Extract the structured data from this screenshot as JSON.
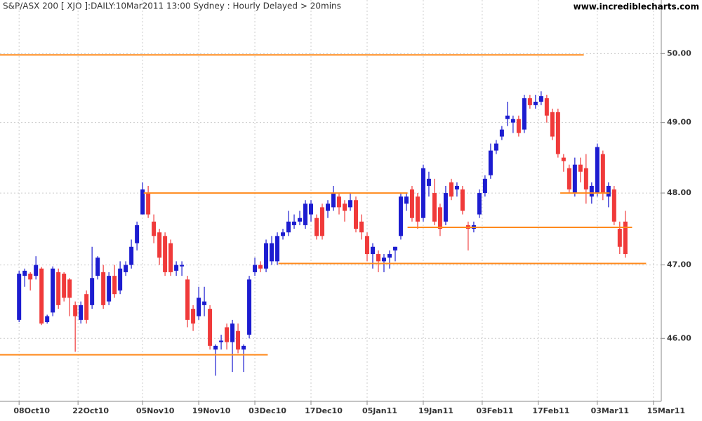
{
  "chart_data": {
    "type": "candlestick",
    "title": "S&P/ASX 200 [ XJO ]:DAILY:10Mar2011 13:00 Sydney : Hourly Delayed > 20mins",
    "source": "www.incrediblecharts.com",
    "log": true,
    "grid": true,
    "up_color": "#1c1cd0",
    "down_color": "#f03a3a",
    "level_color": "#ff8a1c",
    "ylim": [
      45.16,
      50.79
    ],
    "yticks": [
      {
        "value": 46,
        "label": "46.00"
      },
      {
        "value": 47,
        "label": "47.00"
      },
      {
        "value": 48,
        "label": "48.00"
      },
      {
        "value": 49,
        "label": "49.00"
      },
      {
        "value": 50,
        "label": "50.00"
      }
    ],
    "xlim": [
      -3.4,
      114.4
    ],
    "xticks": [
      {
        "value": 0,
        "label": "08Oct10"
      },
      {
        "value": 10.5,
        "label": "22Oct10"
      },
      {
        "value": 22,
        "label": "05Nov10"
      },
      {
        "value": 32,
        "label": "19Nov10"
      },
      {
        "value": 42,
        "label": "03Dec10"
      },
      {
        "value": 52,
        "label": "17Dec10"
      },
      {
        "value": 62,
        "label": "05Jan11"
      },
      {
        "value": 72,
        "label": "19Jan11"
      },
      {
        "value": 82.5,
        "label": "03Feb11"
      },
      {
        "value": 92.5,
        "label": "17Feb11"
      },
      {
        "value": 103,
        "label": "03Mar11"
      },
      {
        "value": 113,
        "label": "15Mar11"
      }
    ],
    "open": [
      46.25,
      46.85,
      46.88,
      46.85,
      46.95,
      46.22,
      46.35,
      46.9,
      46.88,
      46.8,
      46.45,
      46.25,
      46.6,
      46.45,
      46.85,
      46.9,
      46.5,
      46.85,
      46.65,
      46.9,
      47.0,
      47.3,
      47.7,
      48.0,
      47.6,
      47.45,
      47.4,
      47.3,
      46.92,
      46.98,
      46.8,
      46.4,
      46.3,
      46.45,
      46.4,
      45.85,
      45.95,
      46.15,
      45.95,
      46.1,
      45.85,
      46.05,
      46.9,
      47.0,
      46.95,
      47.05,
      47.05,
      47.4,
      47.45,
      47.55,
      47.6,
      47.55,
      47.7,
      47.65,
      47.8,
      47.75,
      47.8,
      47.95,
      47.85,
      47.8,
      47.9,
      47.6,
      47.4,
      47.15,
      47.15,
      47.05,
      47.1,
      47.2,
      47.4,
      47.85,
      48.05,
      47.95,
      47.65,
      48.1,
      48.0,
      47.8,
      47.6,
      48.15,
      48.05,
      48.05,
      47.55,
      47.5,
      47.7,
      48.0,
      48.25,
      48.6,
      48.8,
      49.05,
      49.0,
      49.05,
      48.9,
      49.35,
      49.25,
      49.3,
      49.35,
      49.15,
      49.15,
      48.5,
      48.35,
      48.0,
      48.4,
      48.35,
      47.95,
      48.0,
      48.55,
      47.95,
      48.05,
      47.5,
      47.6
    ],
    "high": [
      46.92,
      46.95,
      46.9,
      47.12,
      46.97,
      46.32,
      46.98,
      46.95,
      46.9,
      46.82,
      46.5,
      46.5,
      46.65,
      47.25,
      47.12,
      47.0,
      46.9,
      47.0,
      47.05,
      47.05,
      47.35,
      47.6,
      48.15,
      48.1,
      47.7,
      47.5,
      47.45,
      47.35,
      47.05,
      47.05,
      46.85,
      46.45,
      46.7,
      46.7,
      46.45,
      45.92,
      46.05,
      46.2,
      46.25,
      46.2,
      45.92,
      46.85,
      47.1,
      47.05,
      47.35,
      47.4,
      47.45,
      47.5,
      47.75,
      47.7,
      47.75,
      47.9,
      47.9,
      47.7,
      47.85,
      47.9,
      48.1,
      48.0,
      47.9,
      48.0,
      47.95,
      47.7,
      47.45,
      47.3,
      47.2,
      47.15,
      47.2,
      47.25,
      48.0,
      48.0,
      48.1,
      48.0,
      48.4,
      48.3,
      48.2,
      47.85,
      48.1,
      48.2,
      48.15,
      48.1,
      47.6,
      47.6,
      48.05,
      48.25,
      48.7,
      48.75,
      48.95,
      49.3,
      49.1,
      49.1,
      49.4,
      49.4,
      49.4,
      49.45,
      49.4,
      49.2,
      49.2,
      48.55,
      48.4,
      48.5,
      48.5,
      48.55,
      48.15,
      48.7,
      48.6,
      48.15,
      48.1,
      47.6,
      47.75
    ],
    "low": [
      46.22,
      46.7,
      46.65,
      46.8,
      46.18,
      46.2,
      46.3,
      46.4,
      46.5,
      46.3,
      45.82,
      46.2,
      46.2,
      46.4,
      46.8,
      46.4,
      46.45,
      46.55,
      46.6,
      46.85,
      46.95,
      47.2,
      47.7,
      47.65,
      47.3,
      47.0,
      46.85,
      46.85,
      46.85,
      46.85,
      46.15,
      46.1,
      46.25,
      46.3,
      45.85,
      45.5,
      45.85,
      45.85,
      45.55,
      45.8,
      45.55,
      46.0,
      46.85,
      46.9,
      46.9,
      47.0,
      47.0,
      47.35,
      47.4,
      47.5,
      47.55,
      47.5,
      47.6,
      47.35,
      47.35,
      47.65,
      47.75,
      47.7,
      47.6,
      47.75,
      47.45,
      47.35,
      47.05,
      46.95,
      46.9,
      46.9,
      46.95,
      47.05,
      47.35,
      47.75,
      47.6,
      47.5,
      47.6,
      47.95,
      47.55,
      47.4,
      47.55,
      47.9,
      47.95,
      47.7,
      47.2,
      47.45,
      47.65,
      47.95,
      48.2,
      48.55,
      48.75,
      48.95,
      48.85,
      48.8,
      48.85,
      49.2,
      49.2,
      49.25,
      49.0,
      48.75,
      48.5,
      48.3,
      48.0,
      47.95,
      48.15,
      47.85,
      47.85,
      47.95,
      47.9,
      47.8,
      47.55,
      47.15,
      47.1
    ],
    "close": [
      46.88,
      46.92,
      46.8,
      47.0,
      46.2,
      46.3,
      46.95,
      46.45,
      46.55,
      46.55,
      46.3,
      46.45,
      46.25,
      46.82,
      47.1,
      46.45,
      46.85,
      46.6,
      46.95,
      47.0,
      47.25,
      47.55,
      48.05,
      47.7,
      47.4,
      47.1,
      46.9,
      46.9,
      47.0,
      47.0,
      46.25,
      46.2,
      46.55,
      46.5,
      45.9,
      45.9,
      45.97,
      45.95,
      46.2,
      45.85,
      45.9,
      46.8,
      47.0,
      46.95,
      47.3,
      47.3,
      47.4,
      47.45,
      47.6,
      47.6,
      47.65,
      47.85,
      47.85,
      47.4,
      47.4,
      47.85,
      48.0,
      47.8,
      47.75,
      47.9,
      47.5,
      47.45,
      47.15,
      47.25,
      47.05,
      47.1,
      47.15,
      47.25,
      47.95,
      47.95,
      47.65,
      47.6,
      48.35,
      48.2,
      47.6,
      47.5,
      48.0,
      47.95,
      48.1,
      47.75,
      47.5,
      47.55,
      48.0,
      48.2,
      48.6,
      48.7,
      48.9,
      49.1,
      49.05,
      48.85,
      49.35,
      49.25,
      49.3,
      49.38,
      49.1,
      48.8,
      48.55,
      48.45,
      48.05,
      48.4,
      48.3,
      48.05,
      48.1,
      48.65,
      48.0,
      48.1,
      47.6,
      47.25,
      47.15
    ],
    "levels": [
      {
        "value": 49.98,
        "from": -3.4,
        "to": 100.6
      },
      {
        "value": 48.0,
        "from": 22.2,
        "to": 69.2
      },
      {
        "value": 45.78,
        "from": -3.4,
        "to": 44.3
      },
      {
        "value": 47.02,
        "from": 46.2,
        "to": 111.7
      },
      {
        "value": 47.52,
        "from": 69.2,
        "to": 109.2
      },
      {
        "value": 48.0,
        "from": 96.4,
        "to": 105.2
      }
    ]
  }
}
